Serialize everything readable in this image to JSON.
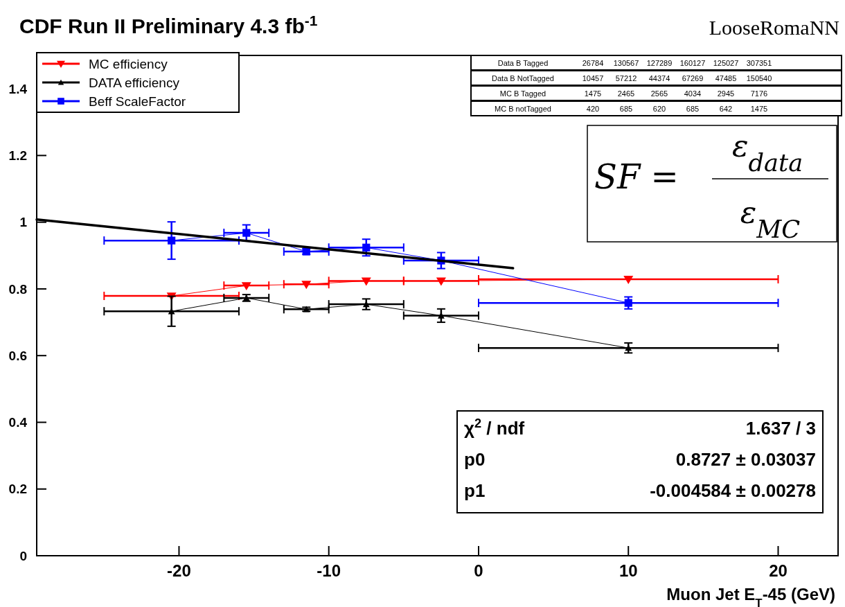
{
  "chart_data": {
    "type": "line",
    "title": "CDF Run II Preliminary 4.3 fb$^{-1}$",
    "subtitle": "LooseRomaNN",
    "xlabel": "Muon Jet E$_{T}$-45 (GeV)",
    "xlim": [
      -29.5,
      24
    ],
    "xticks": [
      -20,
      -10,
      0,
      10,
      20
    ],
    "ylim": [
      0,
      1.5
    ],
    "yticks": [
      0,
      0.2,
      0.4,
      0.6,
      0.8,
      1,
      1.2,
      1.4
    ],
    "grid": false,
    "legend": "top left",
    "line_style": "solid",
    "series": [
      {
        "name": "MC efficiency",
        "color": "#ff0000",
        "marker": "triangle-down",
        "x": [
          -20.5,
          -15.5,
          -11.5,
          -7.5,
          -2.5,
          10
        ],
        "values": [
          0.779,
          0.81,
          0.814,
          0.824,
          0.824,
          0.829
        ],
        "xerrors": [
          4.5,
          1.5,
          1.5,
          2.5,
          2.5,
          10
        ]
      },
      {
        "name": "DATA efficiency",
        "color": "#000000",
        "marker": "triangle",
        "x": [
          -20.5,
          -15.5,
          -11.5,
          -7.5,
          -2.5,
          10
        ],
        "values": [
          0.733,
          0.773,
          0.739,
          0.754,
          0.72,
          0.623
        ],
        "errors": [
          0.045,
          0.01,
          0.006,
          0.016,
          0.02,
          0.015
        ],
        "xerrors": [
          4.5,
          1.5,
          1.5,
          2.5,
          2.5,
          10
        ]
      },
      {
        "name": "Beff ScaleFactor",
        "color": "#0000ff",
        "marker": "square",
        "x": [
          -20.5,
          -15.5,
          -11.5,
          -7.5,
          -2.5,
          10
        ],
        "values": [
          0.945,
          0.968,
          0.912,
          0.924,
          0.885,
          0.758
        ],
        "errors": [
          0.056,
          0.024,
          0.008,
          0.025,
          0.024,
          0.018
        ],
        "xerrors": [
          4.5,
          1.5,
          1.5,
          2.5,
          2.5,
          10
        ]
      },
      {
        "type": "line",
        "color": "#000000",
        "marker": "none",
        "x": [
          -29.5,
          2.3
        ],
        "values": [
          1.008,
          0.862
        ]
      }
    ],
    "annotations": [
      "Data B Tagged",
      "26784",
      "130567",
      "127289",
      "160127",
      "125027",
      "307351",
      "Data B NotTagged",
      "10457",
      "57212",
      "44374",
      "67269",
      "47485",
      "150540",
      "MC B Tagged",
      "1475",
      "2465",
      "2565",
      "4034",
      "2945",
      "7176",
      "MC B notTagged",
      "420",
      "685",
      "620",
      "685",
      "642",
      "1475",
      "SF =",
      "ε$_{data}$",
      "ε$_{MC}$",
      "χ$^{2}$ / ndf",
      "1.637 / 3",
      "p0",
      "0.8727 ± 0.03037",
      "p1",
      "-0.004584 ± 0.00278"
    ]
  }
}
